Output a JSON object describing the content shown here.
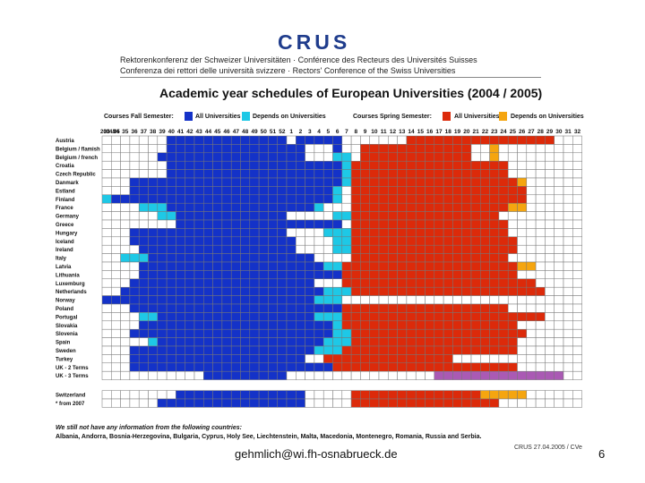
{
  "header": {
    "logo": "CRUS",
    "subtitle_1": "Rektorenkonferenz der Schweizer Universitäten · Conférence des Recteurs des Universités Suisses",
    "subtitle_2": "Conferenza dei rettori delle università svizzere · Rectors' Conference of the Swiss Universities"
  },
  "colors": {
    "all_fall": "#1432c8",
    "depends_fall": "#1ec8e6",
    "all_spring": "#dc2a0a",
    "depends_spring": "#f5a50f",
    "uk3_terms": "#aa5ab4",
    "empty": "#ffffff"
  },
  "legend": {
    "fall_label": "Courses Fall Semester:",
    "spring_label": "Courses Spring Semester:",
    "all": "All Universities",
    "depends": "Depends on Universities"
  },
  "chart_data": {
    "type": "heatmap",
    "title": "Academic year schedules of European Universities (2004 / 2005)",
    "corner_label": "2004/05",
    "weeks": [
      "33",
      "34",
      "35",
      "36",
      "37",
      "38",
      "39",
      "40",
      "41",
      "42",
      "43",
      "44",
      "45",
      "46",
      "47",
      "48",
      "49",
      "50",
      "51",
      "52",
      "1",
      "2",
      "3",
      "4",
      "5",
      "6",
      "7",
      "8",
      "9",
      "10",
      "11",
      "12",
      "13",
      "14",
      "15",
      "16",
      "17",
      "18",
      "19",
      "20",
      "21",
      "22",
      "23",
      "24",
      "25",
      "26",
      "27",
      "28",
      "29",
      "30",
      "31",
      "32"
    ],
    "value_key": {
      "0": "no courses",
      "1": "fall: all universities",
      "2": "fall: depends on universities",
      "3": "spring: all universities",
      "4": "spring: depends on universities",
      "5": "UK 3 terms"
    },
    "countries": [
      {
        "name": "Austria",
        "pattern": [
          [
            7,
            "0"
          ],
          [
            13,
            "1"
          ],
          [
            1,
            "0"
          ],
          [
            5,
            "1"
          ],
          [
            7,
            "0"
          ],
          [
            16,
            "3"
          ],
          [
            3,
            "0"
          ]
        ]
      },
      {
        "name": "Belgium / flamish",
        "pattern": [
          [
            7,
            "0"
          ],
          [
            15,
            "1"
          ],
          [
            3,
            "0"
          ],
          [
            1,
            "1"
          ],
          [
            2,
            "0"
          ],
          [
            12,
            "3"
          ],
          [
            2,
            "0"
          ],
          [
            1,
            "4"
          ],
          [
            9,
            "0"
          ]
        ]
      },
      {
        "name": "Belgium / french",
        "pattern": [
          [
            6,
            "0"
          ],
          [
            16,
            "1"
          ],
          [
            3,
            "0"
          ],
          [
            2,
            "2"
          ],
          [
            1,
            "0"
          ],
          [
            12,
            "3"
          ],
          [
            2,
            "0"
          ],
          [
            1,
            "4"
          ],
          [
            9,
            "0"
          ]
        ]
      },
      {
        "name": "Croatia",
        "pattern": [
          [
            7,
            "0"
          ],
          [
            19,
            "1"
          ],
          [
            1,
            "2"
          ],
          [
            17,
            "3"
          ],
          [
            8,
            "0"
          ]
        ]
      },
      {
        "name": "Czech Republic",
        "pattern": [
          [
            7,
            "0"
          ],
          [
            19,
            "1"
          ],
          [
            1,
            "2"
          ],
          [
            17,
            "3"
          ],
          [
            8,
            "0"
          ]
        ]
      },
      {
        "name": "Danmark",
        "pattern": [
          [
            3,
            "0"
          ],
          [
            23,
            "1"
          ],
          [
            1,
            "2"
          ],
          [
            18,
            "3"
          ],
          [
            1,
            "4"
          ],
          [
            6,
            "0"
          ]
        ]
      },
      {
        "name": "Estland",
        "pattern": [
          [
            3,
            "0"
          ],
          [
            22,
            "1"
          ],
          [
            1,
            "2"
          ],
          [
            1,
            "0"
          ],
          [
            19,
            "3"
          ],
          [
            6,
            "0"
          ]
        ]
      },
      {
        "name": "Finland",
        "pattern": [
          [
            1,
            "2"
          ],
          [
            24,
            "1"
          ],
          [
            1,
            "2"
          ],
          [
            1,
            "0"
          ],
          [
            19,
            "3"
          ],
          [
            6,
            "0"
          ]
        ]
      },
      {
        "name": "France",
        "pattern": [
          [
            4,
            "0"
          ],
          [
            3,
            "2"
          ],
          [
            16,
            "1"
          ],
          [
            1,
            "2"
          ],
          [
            3,
            "0"
          ],
          [
            17,
            "3"
          ],
          [
            2,
            "4"
          ],
          [
            6,
            "0"
          ]
        ]
      },
      {
        "name": "Germany",
        "pattern": [
          [
            6,
            "0"
          ],
          [
            2,
            "2"
          ],
          [
            12,
            "1"
          ],
          [
            5,
            "0"
          ],
          [
            2,
            "2"
          ],
          [
            16,
            "3"
          ],
          [
            9,
            "0"
          ]
        ]
      },
      {
        "name": "Greece",
        "pattern": [
          [
            8,
            "0"
          ],
          [
            18,
            "1"
          ],
          [
            1,
            "0"
          ],
          [
            17,
            "3"
          ],
          [
            8,
            "0"
          ]
        ]
      },
      {
        "name": "Hungary",
        "pattern": [
          [
            3,
            "0"
          ],
          [
            17,
            "1"
          ],
          [
            4,
            "0"
          ],
          [
            3,
            "2"
          ],
          [
            17,
            "3"
          ],
          [
            8,
            "0"
          ]
        ]
      },
      {
        "name": "Iceland",
        "pattern": [
          [
            3,
            "0"
          ],
          [
            18,
            "1"
          ],
          [
            4,
            "0"
          ],
          [
            2,
            "2"
          ],
          [
            18,
            "3"
          ],
          [
            7,
            "0"
          ]
        ]
      },
      {
        "name": "Ireland",
        "pattern": [
          [
            4,
            "0"
          ],
          [
            17,
            "1"
          ],
          [
            4,
            "0"
          ],
          [
            2,
            "2"
          ],
          [
            18,
            "3"
          ],
          [
            7,
            "0"
          ]
        ]
      },
      {
        "name": "Italy",
        "pattern": [
          [
            2,
            "0"
          ],
          [
            3,
            "2"
          ],
          [
            18,
            "1"
          ],
          [
            4,
            "0"
          ],
          [
            17,
            "3"
          ],
          [
            8,
            "0"
          ]
        ]
      },
      {
        "name": "Latvia",
        "pattern": [
          [
            4,
            "0"
          ],
          [
            20,
            "1"
          ],
          [
            2,
            "2"
          ],
          [
            19,
            "3"
          ],
          [
            2,
            "4"
          ],
          [
            5,
            "0"
          ]
        ]
      },
      {
        "name": "Lithuania",
        "pattern": [
          [
            4,
            "0"
          ],
          [
            22,
            "1"
          ],
          [
            19,
            "3"
          ],
          [
            7,
            "0"
          ]
        ]
      },
      {
        "name": "Luxemburg",
        "pattern": [
          [
            3,
            "0"
          ],
          [
            20,
            "1"
          ],
          [
            3,
            "0"
          ],
          [
            21,
            "3"
          ],
          [
            5,
            "0"
          ]
        ]
      },
      {
        "name": "Netherlands",
        "pattern": [
          [
            2,
            "0"
          ],
          [
            22,
            "1"
          ],
          [
            3,
            "2"
          ],
          [
            21,
            "3"
          ],
          [
            4,
            "0"
          ]
        ]
      },
      {
        "name": "Norway",
        "pattern": [
          [
            23,
            "1"
          ],
          [
            3,
            "2"
          ],
          [
            26,
            "0"
          ]
        ]
      },
      {
        "name": "Poland",
        "pattern": [
          [
            3,
            "0"
          ],
          [
            23,
            "1"
          ],
          [
            18,
            "3"
          ],
          [
            8,
            "0"
          ]
        ]
      },
      {
        "name": "Portugal",
        "pattern": [
          [
            4,
            "0"
          ],
          [
            2,
            "2"
          ],
          [
            17,
            "1"
          ],
          [
            3,
            "2"
          ],
          [
            22,
            "3"
          ],
          [
            4,
            "0"
          ]
        ]
      },
      {
        "name": "Slovakia",
        "pattern": [
          [
            4,
            "0"
          ],
          [
            21,
            "1"
          ],
          [
            1,
            "2"
          ],
          [
            19,
            "3"
          ],
          [
            7,
            "0"
          ]
        ]
      },
      {
        "name": "Slovenia",
        "pattern": [
          [
            3,
            "0"
          ],
          [
            22,
            "1"
          ],
          [
            2,
            "2"
          ],
          [
            19,
            "3"
          ],
          [
            6,
            "0"
          ]
        ]
      },
      {
        "name": "Spain",
        "pattern": [
          [
            5,
            "0"
          ],
          [
            1,
            "2"
          ],
          [
            18,
            "1"
          ],
          [
            3,
            "2"
          ],
          [
            18,
            "3"
          ],
          [
            7,
            "0"
          ]
        ]
      },
      {
        "name": "Sweden",
        "pattern": [
          [
            3,
            "0"
          ],
          [
            20,
            "1"
          ],
          [
            3,
            "2"
          ],
          [
            19,
            "3"
          ],
          [
            7,
            "0"
          ]
        ]
      },
      {
        "name": "Turkey",
        "pattern": [
          [
            3,
            "0"
          ],
          [
            19,
            "1"
          ],
          [
            2,
            "0"
          ],
          [
            14,
            "3"
          ],
          [
            14,
            "0"
          ]
        ]
      },
      {
        "name": "UK - 2 Terms",
        "pattern": [
          [
            3,
            "0"
          ],
          [
            22,
            "1"
          ],
          [
            20,
            "3"
          ],
          [
            7,
            "0"
          ]
        ]
      },
      {
        "name": "UK - 3 Terms",
        "pattern": [
          [
            11,
            "0"
          ],
          [
            9,
            "1"
          ],
          [
            16,
            "0"
          ],
          [
            2,
            "5"
          ],
          [
            12,
            "5"
          ],
          [
            2,
            "0"
          ]
        ]
      },
      {
        "name": "Switzerland",
        "pattern": [
          [
            8,
            "0"
          ],
          [
            14,
            "1"
          ],
          [
            5,
            "0"
          ],
          [
            14,
            "3"
          ],
          [
            5,
            "4"
          ],
          [
            6,
            "0"
          ]
        ]
      },
      {
        "name": "*  from 2007",
        "pattern": [
          [
            6,
            "0"
          ],
          [
            16,
            "1"
          ],
          [
            5,
            "0"
          ],
          [
            16,
            "3"
          ],
          [
            9,
            "0"
          ]
        ]
      }
    ]
  },
  "notes": {
    "line_1": "We still not have any information from the following countries:",
    "line_2": "Albania, Andorra, Bosnia-Herzegovina, Bulgaria, Cyprus, Holy See, Liechtenstein, Malta, Macedonia, Montenegro, Romania, Russia and Serbia."
  },
  "stamp": "CRUS 27.04.2005 / CVe",
  "footer": {
    "email": "gehmlich@wi.fh-osnabrueck.de",
    "page": "6"
  }
}
